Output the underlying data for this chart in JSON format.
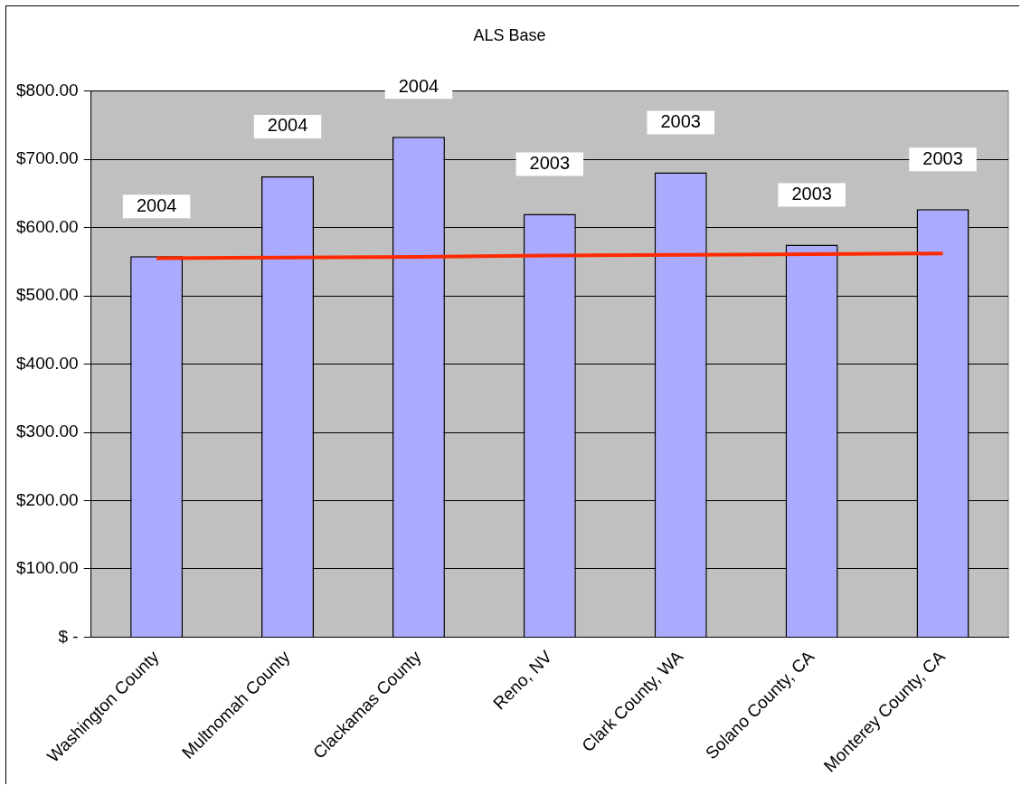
{
  "chart_data": {
    "type": "bar",
    "title": "ALS Base",
    "categories": [
      "Washington County",
      "Multnomah County",
      "Clackamas County",
      "Reno, NV",
      "Clark County, WA",
      "Solano County, CA",
      "Monterey County, CA"
    ],
    "series": [
      {
        "color": "#aaaaff",
        "values": [
          558,
          675,
          733,
          620,
          681,
          575,
          627
        ]
      },
      {
        "type": "line",
        "color": "#ff2a00",
        "values": [
          555,
          556,
          557,
          559,
          560,
          561,
          562
        ],
        "marker": "none"
      }
    ],
    "annotations": [
      {
        "text": "2004",
        "x": "Washington County",
        "y": 558
      },
      {
        "text": "2004",
        "x": "Multnomah County",
        "y": 675
      },
      {
        "text": "2004",
        "x": "Clackamas County",
        "y": 733
      },
      {
        "text": "2003",
        "x": "Reno, NV",
        "y": 620
      },
      {
        "text": "2003",
        "x": "Clark County, WA",
        "y": 681
      },
      {
        "text": "2003",
        "x": "Solano County, CA",
        "y": 575
      },
      {
        "text": "2003",
        "x": "Monterey County, CA",
        "y": 627
      }
    ],
    "ylim": [
      0,
      800
    ],
    "yticks": [
      {
        "value": 0,
        "label": "$ -"
      },
      {
        "value": 100,
        "label": "$100.00"
      },
      {
        "value": 200,
        "label": "$200.00"
      },
      {
        "value": 300,
        "label": "$300.00"
      },
      {
        "value": 400,
        "label": "$400.00"
      },
      {
        "value": 500,
        "label": "$500.00"
      },
      {
        "value": 600,
        "label": "$600.00"
      },
      {
        "value": 700,
        "label": "$700.00"
      },
      {
        "value": 800,
        "label": "$800.00"
      }
    ],
    "grid": "y",
    "legend": false
  }
}
